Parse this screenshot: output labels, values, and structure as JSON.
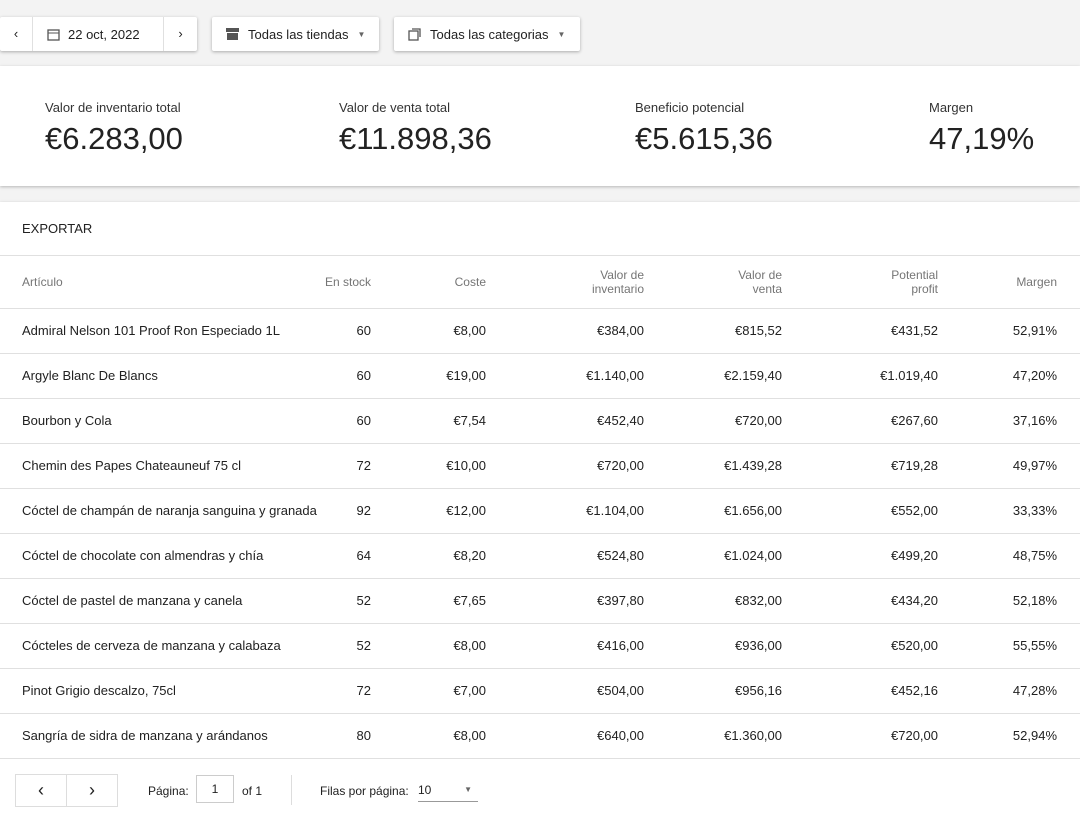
{
  "toolbar": {
    "date": "22 oct, 2022",
    "store_filter": "Todas las tiendas",
    "category_filter": "Todas las categorias"
  },
  "summary": [
    {
      "label": "Valor de inventario total",
      "value": "€6.283,00"
    },
    {
      "label": "Valor de venta total",
      "value": "€11.898,36"
    },
    {
      "label": "Beneficio potencial",
      "value": "€5.615,36"
    },
    {
      "label": "Margen",
      "value": "47,19%"
    }
  ],
  "table": {
    "action": "EXPORTAR",
    "columns": [
      "Artículo",
      "En stock",
      "Coste",
      "Valor de inventario",
      "Valor de venta",
      "Potential profit",
      "Margen"
    ],
    "rows": [
      [
        "Admiral Nelson 101 Proof Ron Especiado 1L",
        60,
        "€8,00",
        "€384,00",
        "€815,52",
        "€431,52",
        "52,91%"
      ],
      [
        "Argyle Blanc De Blancs",
        60,
        "€19,00",
        "€1.140,00",
        "€2.159,40",
        "€1.019,40",
        "47,20%"
      ],
      [
        "Bourbon y Cola",
        60,
        "€7,54",
        "€452,40",
        "€720,00",
        "€267,60",
        "37,16%"
      ],
      [
        "Chemin des Papes Chateauneuf 75 cl",
        72,
        "€10,00",
        "€720,00",
        "€1.439,28",
        "€719,28",
        "49,97%"
      ],
      [
        "Cóctel de champán de naranja sanguina y granada",
        92,
        "€12,00",
        "€1.104,00",
        "€1.656,00",
        "€552,00",
        "33,33%"
      ],
      [
        "Cóctel de chocolate con almendras y chía",
        64,
        "€8,20",
        "€524,80",
        "€1.024,00",
        "€499,20",
        "48,75%"
      ],
      [
        "Cóctel de pastel de manzana y canela",
        52,
        "€7,65",
        "€397,80",
        "€832,00",
        "€434,20",
        "52,18%"
      ],
      [
        "Cócteles de cerveza de manzana y calabaza",
        52,
        "€8,00",
        "€416,00",
        "€936,00",
        "€520,00",
        "55,55%"
      ],
      [
        "Pinot Grigio descalzo, 75cl",
        72,
        "€7,00",
        "€504,00",
        "€956,16",
        "€452,16",
        "47,28%"
      ],
      [
        "Sangría de sidra de manzana y arándanos",
        80,
        "€8,00",
        "€640,00",
        "€1.360,00",
        "€720,00",
        "52,94%"
      ]
    ]
  },
  "pagination": {
    "page_label": "Página:",
    "page": "1",
    "of": "of 1",
    "rows_label": "Filas por página:",
    "rows_per_page": "10"
  }
}
